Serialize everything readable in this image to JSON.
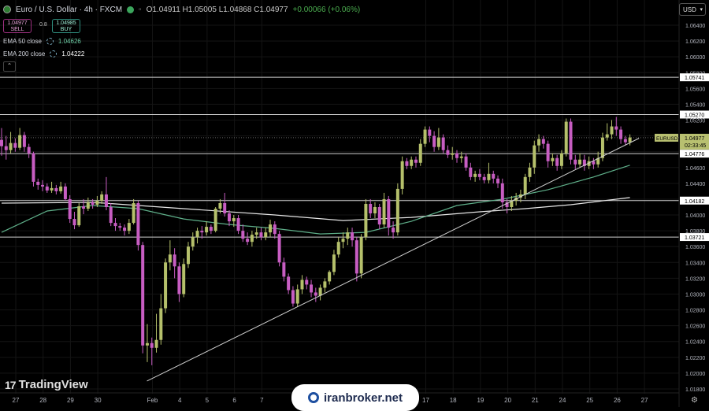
{
  "header": {
    "symbol_title": "Euro / U.S. Dollar · 4h · FXCM",
    "ohlc": "O1.04911 H1.05005 L1.04868 C1.04977",
    "change": "+0.00066 (+0.06%)"
  },
  "trade": {
    "sell_price": "1.04977",
    "sell_label": "SELL",
    "spread": "0.8",
    "buy_price": "1.04985",
    "buy_label": "BUY"
  },
  "indicators": [
    {
      "label": "EMA 50 close",
      "value": "1.04626"
    },
    {
      "label": "EMA 200 close",
      "value": "1.04222"
    }
  ],
  "currency_button": "USD",
  "branding": {
    "tradingview": "TradingView",
    "watermark": "iranbroker.net"
  },
  "colors": {
    "bull": "#b5c06b",
    "bear": "#c75dc2",
    "ema50": "#5fb08a",
    "ema200": "#e6e6e6",
    "level_line": "#cfcfcf",
    "trendline": "#cfcfcf",
    "grid": "#141414"
  },
  "chart_data": {
    "type": "candlestick",
    "symbol": "EURUSD",
    "timeframe": "4h",
    "ylim": [
      1.018,
      1.066
    ],
    "y_ticks": [
      "1.06400",
      "1.06200",
      "1.06000",
      "1.05800",
      "1.05600",
      "1.05400",
      "1.05200",
      "1.05000",
      "1.04800",
      "1.04600",
      "1.04400",
      "1.04200",
      "1.04000",
      "1.03800",
      "1.03600",
      "1.03400",
      "1.03200",
      "1.03000",
      "1.02800",
      "1.02600",
      "1.02400",
      "1.02200",
      "1.02000",
      "1.01800"
    ],
    "x_labels": [
      {
        "label": "27",
        "day": 0
      },
      {
        "label": "28",
        "day": 1
      },
      {
        "label": "29",
        "day": 2
      },
      {
        "label": "30",
        "day": 3
      },
      {
        "label": "Feb",
        "day": 5
      },
      {
        "label": "4",
        "day": 6
      },
      {
        "label": "5",
        "day": 7
      },
      {
        "label": "6",
        "day": 8
      },
      {
        "label": "7",
        "day": 9
      },
      {
        "label": "17",
        "day": 15
      },
      {
        "label": "18",
        "day": 16
      },
      {
        "label": "19",
        "day": 17
      },
      {
        "label": "20",
        "day": 18
      },
      {
        "label": "21",
        "day": 19
      },
      {
        "label": "24",
        "day": 20
      },
      {
        "label": "25",
        "day": 21
      },
      {
        "label": "26",
        "day": 22
      },
      {
        "label": "27",
        "day": 23
      }
    ],
    "horizontal_levels": [
      "1.05741",
      "1.05270",
      "1.04776",
      "1.04182",
      "1.03721"
    ],
    "current_price": {
      "symbol": "EURUSD",
      "price": "1.04977",
      "countdown": "02:33:45"
    },
    "trendline": {
      "start": {
        "day": 4.8,
        "price": 1.019
      },
      "end": {
        "day": 22.8,
        "price": 1.0497
      }
    },
    "candles": [
      {
        "o": 1.0495,
        "c": 1.0487,
        "h": 1.051,
        "l": 1.0475
      },
      {
        "o": 1.0487,
        "c": 1.0482,
        "h": 1.05,
        "l": 1.047
      },
      {
        "o": 1.0482,
        "c": 1.0491,
        "h": 1.0505,
        "l": 1.0478
      },
      {
        "o": 1.0491,
        "c": 1.0485,
        "h": 1.0497,
        "l": 1.048
      },
      {
        "o": 1.0485,
        "c": 1.0501,
        "h": 1.051,
        "l": 1.0482
      },
      {
        "o": 1.0501,
        "c": 1.0486,
        "h": 1.0505,
        "l": 1.048
      },
      {
        "o": 1.0486,
        "c": 1.0478,
        "h": 1.049,
        "l": 1.0472
      },
      {
        "o": 1.0478,
        "c": 1.0442,
        "h": 1.048,
        "l": 1.0436
      },
      {
        "o": 1.0442,
        "c": 1.0438,
        "h": 1.0446,
        "l": 1.0432
      },
      {
        "o": 1.0438,
        "c": 1.0436,
        "h": 1.0444,
        "l": 1.043
      },
      {
        "o": 1.0436,
        "c": 1.0431,
        "h": 1.044,
        "l": 1.0428
      },
      {
        "o": 1.0431,
        "c": 1.0434,
        "h": 1.0442,
        "l": 1.0428
      },
      {
        "o": 1.0434,
        "c": 1.043,
        "h": 1.0438,
        "l": 1.0426
      },
      {
        "o": 1.043,
        "c": 1.0436,
        "h": 1.0442,
        "l": 1.0427
      },
      {
        "o": 1.0436,
        "c": 1.042,
        "h": 1.044,
        "l": 1.0418
      },
      {
        "o": 1.042,
        "c": 1.0395,
        "h": 1.0425,
        "l": 1.039
      },
      {
        "o": 1.0395,
        "c": 1.0387,
        "h": 1.0404,
        "l": 1.0382
      },
      {
        "o": 1.0387,
        "c": 1.0411,
        "h": 1.0415,
        "l": 1.0385
      },
      {
        "o": 1.0411,
        "c": 1.0408,
        "h": 1.042,
        "l": 1.0401
      },
      {
        "o": 1.0408,
        "c": 1.0416,
        "h": 1.0422,
        "l": 1.0405
      },
      {
        "o": 1.0416,
        "c": 1.0413,
        "h": 1.042,
        "l": 1.0408
      },
      {
        "o": 1.0413,
        "c": 1.0418,
        "h": 1.0424,
        "l": 1.041
      },
      {
        "o": 1.0418,
        "c": 1.0426,
        "h": 1.043,
        "l": 1.0414
      },
      {
        "o": 1.0426,
        "c": 1.041,
        "h": 1.0448,
        "l": 1.0406
      },
      {
        "o": 1.041,
        "c": 1.039,
        "h": 1.0415,
        "l": 1.0386
      },
      {
        "o": 1.039,
        "c": 1.0386,
        "h": 1.0396,
        "l": 1.038
      },
      {
        "o": 1.0386,
        "c": 1.0384,
        "h": 1.039,
        "l": 1.038
      },
      {
        "o": 1.0384,
        "c": 1.038,
        "h": 1.0388,
        "l": 1.0374
      },
      {
        "o": 1.038,
        "c": 1.039,
        "h": 1.0395,
        "l": 1.0376
      },
      {
        "o": 1.039,
        "c": 1.0415,
        "h": 1.042,
        "l": 1.0388
      },
      {
        "o": 1.0415,
        "c": 1.0362,
        "h": 1.0418,
        "l": 1.0355
      },
      {
        "o": 1.0362,
        "c": 1.0235,
        "h": 1.0366,
        "l": 1.0225
      },
      {
        "o": 1.0235,
        "c": 1.0238,
        "h": 1.0262,
        "l": 1.0214
      },
      {
        "o": 1.0238,
        "c": 1.0232,
        "h": 1.0245,
        "l": 1.021
      },
      {
        "o": 1.0232,
        "c": 1.0242,
        "h": 1.0275,
        "l": 1.0226
      },
      {
        "o": 1.0242,
        "c": 1.0282,
        "h": 1.03,
        "l": 1.0236
      },
      {
        "o": 1.0282,
        "c": 1.034,
        "h": 1.0345,
        "l": 1.0276
      },
      {
        "o": 1.034,
        "c": 1.035,
        "h": 1.0368,
        "l": 1.033
      },
      {
        "o": 1.035,
        "c": 1.0335,
        "h": 1.0358,
        "l": 1.032
      },
      {
        "o": 1.0335,
        "c": 1.03,
        "h": 1.034,
        "l": 1.029
      },
      {
        "o": 1.03,
        "c": 1.0338,
        "h": 1.0345,
        "l": 1.0296
      },
      {
        "o": 1.0338,
        "c": 1.036,
        "h": 1.0366,
        "l": 1.0333
      },
      {
        "o": 1.036,
        "c": 1.0372,
        "h": 1.0378,
        "l": 1.0355
      },
      {
        "o": 1.0372,
        "c": 1.038,
        "h": 1.0384,
        "l": 1.0364
      },
      {
        "o": 1.038,
        "c": 1.0378,
        "h": 1.0386,
        "l": 1.037
      },
      {
        "o": 1.0378,
        "c": 1.0385,
        "h": 1.0392,
        "l": 1.0374
      },
      {
        "o": 1.0385,
        "c": 1.038,
        "h": 1.0388,
        "l": 1.0376
      },
      {
        "o": 1.038,
        "c": 1.0408,
        "h": 1.041,
        "l": 1.0378
      },
      {
        "o": 1.0408,
        "c": 1.0415,
        "h": 1.042,
        "l": 1.0402
      },
      {
        "o": 1.0415,
        "c": 1.0402,
        "h": 1.0428,
        "l": 1.0398
      },
      {
        "o": 1.0402,
        "c": 1.0392,
        "h": 1.0406,
        "l": 1.0386
      },
      {
        "o": 1.0392,
        "c": 1.0396,
        "h": 1.04,
        "l": 1.0385
      },
      {
        "o": 1.0396,
        "c": 1.038,
        "h": 1.04,
        "l": 1.0376
      },
      {
        "o": 1.038,
        "c": 1.037,
        "h": 1.0388,
        "l": 1.0366
      },
      {
        "o": 1.037,
        "c": 1.0366,
        "h": 1.0378,
        "l": 1.0362
      },
      {
        "o": 1.0366,
        "c": 1.0375,
        "h": 1.038,
        "l": 1.036
      },
      {
        "o": 1.0375,
        "c": 1.0378,
        "h": 1.0384,
        "l": 1.037
      },
      {
        "o": 1.0378,
        "c": 1.0372,
        "h": 1.0384,
        "l": 1.0368
      },
      {
        "o": 1.0372,
        "c": 1.0378,
        "h": 1.0384,
        "l": 1.0368
      },
      {
        "o": 1.0378,
        "c": 1.0388,
        "h": 1.0394,
        "l": 1.0372
      },
      {
        "o": 1.0388,
        "c": 1.0376,
        "h": 1.0392,
        "l": 1.037
      },
      {
        "o": 1.0376,
        "c": 1.034,
        "h": 1.038,
        "l": 1.0335
      },
      {
        "o": 1.034,
        "c": 1.0322,
        "h": 1.0346,
        "l": 1.0316
      },
      {
        "o": 1.0322,
        "c": 1.0305,
        "h": 1.0326,
        "l": 1.03
      },
      {
        "o": 1.0305,
        "c": 1.0288,
        "h": 1.031,
        "l": 1.0284
      },
      {
        "o": 1.0288,
        "c": 1.0306,
        "h": 1.0312,
        "l": 1.0284
      },
      {
        "o": 1.0306,
        "c": 1.0318,
        "h": 1.0324,
        "l": 1.03
      },
      {
        "o": 1.0318,
        "c": 1.0312,
        "h": 1.0322,
        "l": 1.0306
      },
      {
        "o": 1.0312,
        "c": 1.0302,
        "h": 1.0318,
        "l": 1.0296
      },
      {
        "o": 1.0302,
        "c": 1.0298,
        "h": 1.0308,
        "l": 1.029
      },
      {
        "o": 1.0298,
        "c": 1.0308,
        "h": 1.0312,
        "l": 1.0292
      },
      {
        "o": 1.0308,
        "c": 1.0316,
        "h": 1.032,
        "l": 1.0302
      },
      {
        "o": 1.0316,
        "c": 1.0328,
        "h": 1.033,
        "l": 1.0312
      },
      {
        "o": 1.0328,
        "c": 1.035,
        "h": 1.0356,
        "l": 1.0324
      },
      {
        "o": 1.035,
        "c": 1.0366,
        "h": 1.0372,
        "l": 1.0346
      },
      {
        "o": 1.0366,
        "c": 1.037,
        "h": 1.0378,
        "l": 1.0358
      },
      {
        "o": 1.037,
        "c": 1.0378,
        "h": 1.0384,
        "l": 1.0362
      },
      {
        "o": 1.0378,
        "c": 1.0368,
        "h": 1.0384,
        "l": 1.036
      },
      {
        "o": 1.0368,
        "c": 1.0326,
        "h": 1.0372,
        "l": 1.0316
      },
      {
        "o": 1.0326,
        "c": 1.0372,
        "h": 1.0376,
        "l": 1.032
      },
      {
        "o": 1.0372,
        "c": 1.0414,
        "h": 1.042,
        "l": 1.0368
      },
      {
        "o": 1.0414,
        "c": 1.0402,
        "h": 1.042,
        "l": 1.0396
      },
      {
        "o": 1.0402,
        "c": 1.041,
        "h": 1.0416,
        "l": 1.0396
      },
      {
        "o": 1.041,
        "c": 1.0388,
        "h": 1.0414,
        "l": 1.0382
      },
      {
        "o": 1.0388,
        "c": 1.042,
        "h": 1.0428,
        "l": 1.0384
      },
      {
        "o": 1.042,
        "c": 1.0384,
        "h": 1.0424,
        "l": 1.0374
      },
      {
        "o": 1.0384,
        "c": 1.0378,
        "h": 1.0392,
        "l": 1.037
      },
      {
        "o": 1.0378,
        "c": 1.0433,
        "h": 1.044,
        "l": 1.0374
      },
      {
        "o": 1.0433,
        "c": 1.0468,
        "h": 1.0474,
        "l": 1.0426
      },
      {
        "o": 1.0468,
        "c": 1.0462,
        "h": 1.0472,
        "l": 1.0458
      },
      {
        "o": 1.0462,
        "c": 1.047,
        "h": 1.0474,
        "l": 1.0458
      },
      {
        "o": 1.047,
        "c": 1.0466,
        "h": 1.0474,
        "l": 1.046
      },
      {
        "o": 1.0466,
        "c": 1.049,
        "h": 1.0496,
        "l": 1.0462
      },
      {
        "o": 1.049,
        "c": 1.0508,
        "h": 1.0512,
        "l": 1.0486
      },
      {
        "o": 1.0508,
        "c": 1.05,
        "h": 1.0512,
        "l": 1.0492
      },
      {
        "o": 1.05,
        "c": 1.0486,
        "h": 1.0506,
        "l": 1.048
      },
      {
        "o": 1.0486,
        "c": 1.0498,
        "h": 1.051,
        "l": 1.0482
      },
      {
        "o": 1.0498,
        "c": 1.0482,
        "h": 1.0502,
        "l": 1.0478
      },
      {
        "o": 1.0482,
        "c": 1.0476,
        "h": 1.0488,
        "l": 1.0472
      },
      {
        "o": 1.0476,
        "c": 1.0478,
        "h": 1.0486,
        "l": 1.047
      },
      {
        "o": 1.0478,
        "c": 1.0472,
        "h": 1.0482,
        "l": 1.0466
      },
      {
        "o": 1.0472,
        "c": 1.0474,
        "h": 1.048,
        "l": 1.0466
      },
      {
        "o": 1.0474,
        "c": 1.046,
        "h": 1.0478,
        "l": 1.0456
      },
      {
        "o": 1.046,
        "c": 1.0448,
        "h": 1.0466,
        "l": 1.0444
      },
      {
        "o": 1.0448,
        "c": 1.0452,
        "h": 1.0456,
        "l": 1.0442
      },
      {
        "o": 1.0452,
        "c": 1.0448,
        "h": 1.0458,
        "l": 1.0444
      },
      {
        "o": 1.0448,
        "c": 1.0444,
        "h": 1.0452,
        "l": 1.044
      },
      {
        "o": 1.0444,
        "c": 1.0452,
        "h": 1.0466,
        "l": 1.044
      },
      {
        "o": 1.0452,
        "c": 1.0446,
        "h": 1.0456,
        "l": 1.044
      },
      {
        "o": 1.0446,
        "c": 1.044,
        "h": 1.045,
        "l": 1.0434
      },
      {
        "o": 1.044,
        "c": 1.0416,
        "h": 1.0446,
        "l": 1.0408
      },
      {
        "o": 1.0416,
        "c": 1.041,
        "h": 1.042,
        "l": 1.0402
      },
      {
        "o": 1.041,
        "c": 1.0418,
        "h": 1.0424,
        "l": 1.0405
      },
      {
        "o": 1.0418,
        "c": 1.0422,
        "h": 1.0428,
        "l": 1.0412
      },
      {
        "o": 1.0422,
        "c": 1.0426,
        "h": 1.0432,
        "l": 1.0416
      },
      {
        "o": 1.0426,
        "c": 1.0448,
        "h": 1.0452,
        "l": 1.042
      },
      {
        "o": 1.0448,
        "c": 1.046,
        "h": 1.0466,
        "l": 1.0442
      },
      {
        "o": 1.046,
        "c": 1.0488,
        "h": 1.0494,
        "l": 1.0452
      },
      {
        "o": 1.0488,
        "c": 1.0496,
        "h": 1.0502,
        "l": 1.048
      },
      {
        "o": 1.0496,
        "c": 1.049,
        "h": 1.05,
        "l": 1.0484
      },
      {
        "o": 1.049,
        "c": 1.0468,
        "h": 1.0494,
        "l": 1.046
      },
      {
        "o": 1.0468,
        "c": 1.0472,
        "h": 1.0478,
        "l": 1.0462
      },
      {
        "o": 1.0472,
        "c": 1.0462,
        "h": 1.0476,
        "l": 1.0456
      },
      {
        "o": 1.0462,
        "c": 1.0478,
        "h": 1.0482,
        "l": 1.0458
      },
      {
        "o": 1.0478,
        "c": 1.0518,
        "h": 1.0522,
        "l": 1.0474
      },
      {
        "o": 1.0518,
        "c": 1.047,
        "h": 1.0522,
        "l": 1.0464
      },
      {
        "o": 1.047,
        "c": 1.0464,
        "h": 1.0476,
        "l": 1.0458
      },
      {
        "o": 1.0464,
        "c": 1.047,
        "h": 1.0478,
        "l": 1.046
      },
      {
        "o": 1.047,
        "c": 1.0462,
        "h": 1.0476,
        "l": 1.0456
      },
      {
        "o": 1.0462,
        "c": 1.0468,
        "h": 1.0474,
        "l": 1.0458
      },
      {
        "o": 1.0468,
        "c": 1.0464,
        "h": 1.0472,
        "l": 1.0458
      },
      {
        "o": 1.0464,
        "c": 1.0472,
        "h": 1.048,
        "l": 1.046
      },
      {
        "o": 1.0472,
        "c": 1.0498,
        "h": 1.0504,
        "l": 1.0468
      },
      {
        "o": 1.0498,
        "c": 1.0502,
        "h": 1.0516,
        "l": 1.0494
      },
      {
        "o": 1.0502,
        "c": 1.0512,
        "h": 1.052,
        "l": 1.0496
      },
      {
        "o": 1.0512,
        "c": 1.0508,
        "h": 1.0524,
        "l": 1.05
      },
      {
        "o": 1.0508,
        "c": 1.0496,
        "h": 1.0512,
        "l": 1.049
      },
      {
        "o": 1.0496,
        "c": 1.0492,
        "h": 1.05,
        "l": 1.0488
      },
      {
        "o": 1.0492,
        "c": 1.0498,
        "h": 1.0502,
        "l": 1.0488
      }
    ],
    "ema50": [
      {
        "i": 0,
        "v": 1.0378
      },
      {
        "i": 10,
        "v": 1.0405
      },
      {
        "i": 20,
        "v": 1.0412
      },
      {
        "i": 30,
        "v": 1.0408
      },
      {
        "i": 40,
        "v": 1.0395
      },
      {
        "i": 50,
        "v": 1.0388
      },
      {
        "i": 60,
        "v": 1.0383
      },
      {
        "i": 70,
        "v": 1.0376
      },
      {
        "i": 80,
        "v": 1.0378
      },
      {
        "i": 90,
        "v": 1.0392
      },
      {
        "i": 100,
        "v": 1.0412
      },
      {
        "i": 110,
        "v": 1.042
      },
      {
        "i": 120,
        "v": 1.0432
      },
      {
        "i": 130,
        "v": 1.0448
      },
      {
        "i": 138,
        "v": 1.0463
      }
    ],
    "ema200": [
      {
        "i": 0,
        "v": 1.0415
      },
      {
        "i": 20,
        "v": 1.0416
      },
      {
        "i": 40,
        "v": 1.0408
      },
      {
        "i": 60,
        "v": 1.04
      },
      {
        "i": 75,
        "v": 1.0393
      },
      {
        "i": 90,
        "v": 1.0397
      },
      {
        "i": 105,
        "v": 1.0404
      },
      {
        "i": 115,
        "v": 1.0408
      },
      {
        "i": 125,
        "v": 1.0413
      },
      {
        "i": 138,
        "v": 1.0422
      }
    ]
  }
}
